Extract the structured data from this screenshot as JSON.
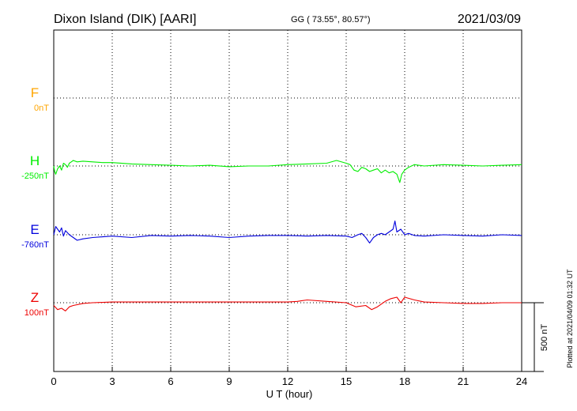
{
  "header": {
    "station": "Dixon Island (DIK)  [AARI]",
    "coords": "GG ( 73.55°,  80.57°)",
    "date": "2021/03/09"
  },
  "side_note": "Plotted at 2021/04/09 01:32 UT",
  "scale_label": "500 nT",
  "chart_data": {
    "type": "line",
    "title": "Dixon Island (DIK)  [AARI]",
    "xlabel": "U T (hour)",
    "ylabel": "",
    "xlim": [
      0,
      24
    ],
    "x_ticks": [
      "0",
      "3",
      "6",
      "9",
      "12",
      "15",
      "18",
      "21",
      "24"
    ],
    "scale_bar_nT": 500,
    "grid": "dotted",
    "series": [
      {
        "name": "F",
        "offset_label": "0nT",
        "color": "#FFA500",
        "x": [],
        "values": []
      },
      {
        "name": "H",
        "offset_label": "-250nT",
        "color": "#00EE00",
        "x": [
          0,
          0.05,
          0.1,
          0.2,
          0.3,
          0.4,
          0.5,
          0.6,
          0.7,
          0.8,
          0.9,
          1.0,
          1.2,
          1.5,
          2,
          2.5,
          3,
          4,
          5,
          6,
          7,
          8,
          9,
          10,
          11,
          12,
          13,
          14,
          14.5,
          15,
          15.2,
          15.4,
          15.6,
          15.8,
          16,
          16.2,
          16.4,
          16.6,
          16.8,
          17,
          17.2,
          17.4,
          17.6,
          17.75,
          17.85,
          18,
          18.2,
          18.5,
          19,
          20,
          21,
          22,
          23,
          24
        ],
        "values": [
          0,
          -40,
          -60,
          -20,
          0,
          -30,
          20,
          10,
          -10,
          20,
          30,
          40,
          30,
          35,
          30,
          25,
          25,
          15,
          10,
          5,
          0,
          5,
          -5,
          0,
          0,
          10,
          15,
          20,
          40,
          20,
          10,
          -30,
          -40,
          -10,
          -20,
          -40,
          -30,
          -20,
          -50,
          -30,
          -50,
          -40,
          -60,
          -120,
          -60,
          -30,
          -10,
          10,
          0,
          10,
          5,
          0,
          5,
          10
        ]
      },
      {
        "name": "E",
        "offset_label": "-760nT",
        "color": "#0000DD",
        "x": [
          0,
          0.1,
          0.2,
          0.3,
          0.4,
          0.5,
          0.6,
          0.8,
          1.0,
          1.2,
          1.5,
          2,
          3,
          4,
          5,
          6,
          7,
          8,
          9,
          10,
          11,
          12,
          13,
          14,
          15,
          15.3,
          15.6,
          15.8,
          16,
          16.2,
          16.4,
          16.6,
          16.8,
          17,
          17.2,
          17.4,
          17.5,
          17.6,
          17.8,
          18,
          18.2,
          18.5,
          19,
          20,
          21,
          22,
          23,
          24
        ],
        "values": [
          0,
          60,
          40,
          20,
          50,
          -10,
          30,
          0,
          -20,
          -40,
          -30,
          -20,
          -10,
          -20,
          -5,
          -10,
          -5,
          -10,
          -20,
          -10,
          -5,
          -5,
          -10,
          -5,
          -10,
          -20,
          0,
          10,
          -20,
          -60,
          -20,
          0,
          10,
          0,
          20,
          40,
          100,
          20,
          40,
          0,
          10,
          -5,
          -10,
          0,
          -5,
          -10,
          0,
          -5
        ]
      },
      {
        "name": "Z",
        "offset_label": "100nT",
        "color": "#EE0000",
        "x": [
          0,
          0.2,
          0.4,
          0.6,
          0.8,
          1.0,
          1.5,
          2,
          3,
          4,
          5,
          6,
          7,
          8,
          9,
          10,
          11,
          12,
          12.5,
          13,
          14,
          15,
          15.5,
          16,
          16.3,
          16.6,
          17,
          17.3,
          17.6,
          17.8,
          18,
          18.5,
          19,
          20,
          21,
          22,
          23,
          24
        ],
        "values": [
          -20,
          -50,
          -40,
          -60,
          -30,
          -20,
          -5,
          0,
          5,
          5,
          5,
          5,
          5,
          5,
          5,
          5,
          5,
          5,
          10,
          20,
          10,
          0,
          -30,
          -20,
          -50,
          -30,
          10,
          30,
          40,
          0,
          40,
          20,
          5,
          0,
          -5,
          -5,
          0,
          0
        ]
      }
    ]
  }
}
